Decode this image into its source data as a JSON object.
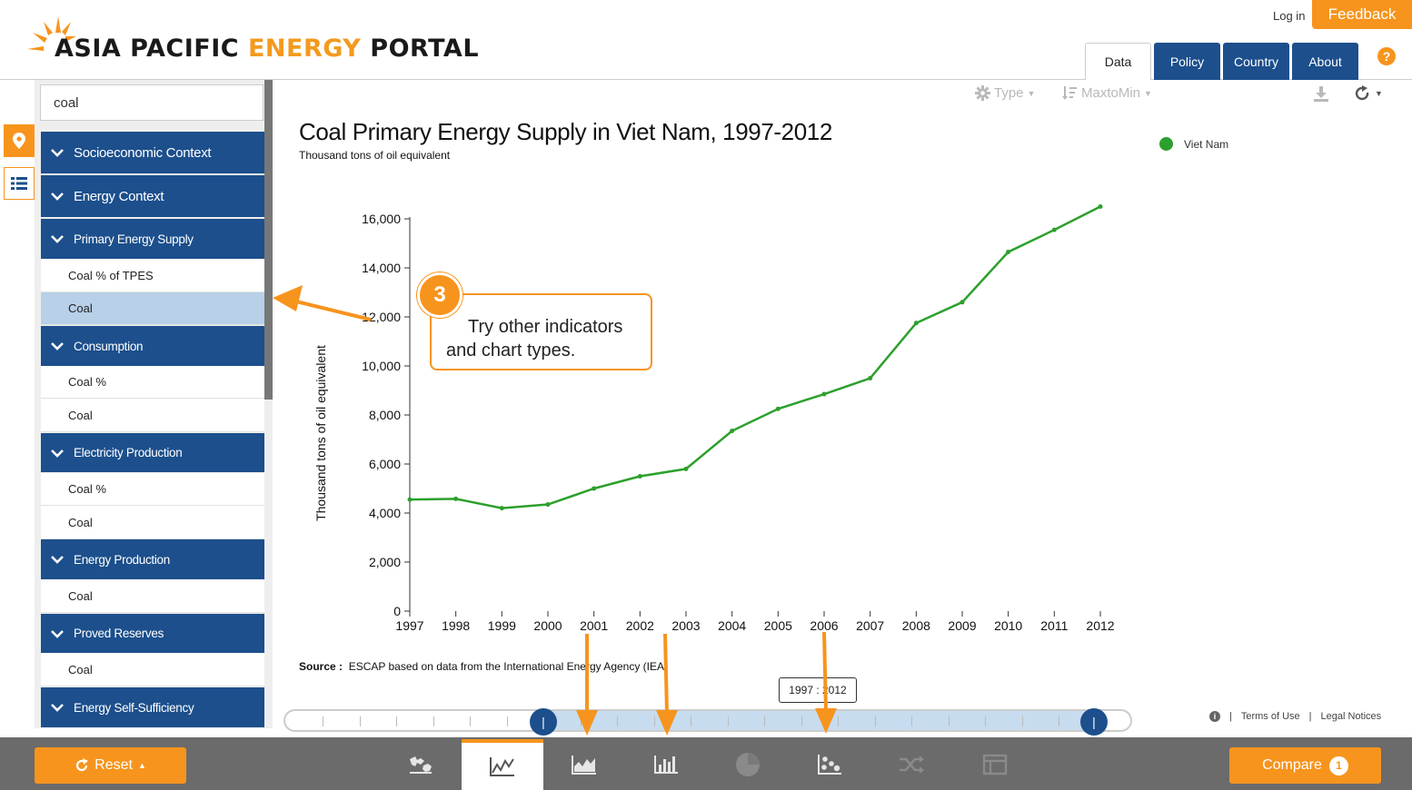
{
  "header": {
    "logo": {
      "word1": "ASIA PACIFIC",
      "word2": "ENERGY",
      "word3": "PORTAL"
    },
    "login_label": "Log in",
    "feedback_label": "Feedback",
    "tabs": [
      {
        "label": "Data",
        "active": true
      },
      {
        "label": "Policy",
        "active": false
      },
      {
        "label": "Country",
        "active": false
      },
      {
        "label": "About",
        "active": false
      }
    ],
    "help_label": "?"
  },
  "sidebar": {
    "search_value": "coal",
    "items": [
      {
        "kind": "category",
        "label": "Socioeconomic Context"
      },
      {
        "kind": "category",
        "label": "Energy Context"
      },
      {
        "kind": "category",
        "label": "Primary Energy Supply"
      },
      {
        "kind": "leaf",
        "label": "Coal % of TPES"
      },
      {
        "kind": "leaf",
        "label": "Coal",
        "selected": true
      },
      {
        "kind": "category",
        "label": "Consumption"
      },
      {
        "kind": "leaf",
        "label": "Coal %"
      },
      {
        "kind": "leaf",
        "label": "Coal"
      },
      {
        "kind": "category",
        "label": "Electricity Production"
      },
      {
        "kind": "leaf",
        "label": "Coal %"
      },
      {
        "kind": "leaf",
        "label": "Coal"
      },
      {
        "kind": "category",
        "label": "Energy Production"
      },
      {
        "kind": "leaf",
        "label": "Coal"
      },
      {
        "kind": "category",
        "label": "Proved Reserves"
      },
      {
        "kind": "leaf",
        "label": "Coal"
      },
      {
        "kind": "category",
        "label": "Energy Self-Sufficiency"
      }
    ]
  },
  "toolbar": {
    "type_label": "Type",
    "sort_label": "MaxtoMin"
  },
  "chart_data": {
    "type": "line",
    "title": "Coal Primary Energy Supply in Viet Nam, 1997-2012",
    "subtitle": "Thousand tons of oil equivalent",
    "ylabel": "Thousand tons of oil equivalent",
    "xlabel": "",
    "ylim": [
      0,
      16000
    ],
    "yticks": [
      0,
      2000,
      4000,
      6000,
      8000,
      10000,
      12000,
      14000,
      16000
    ],
    "ytick_labels": [
      "0",
      "2,000",
      "4,000",
      "6,000",
      "8,000",
      "10,000",
      "12,000",
      "14,000",
      "16,000"
    ],
    "x": [
      "1997",
      "1998",
      "1999",
      "2000",
      "2001",
      "2002",
      "2003",
      "2004",
      "2005",
      "2006",
      "2007",
      "2008",
      "2009",
      "2010",
      "2011",
      "2012"
    ],
    "series": [
      {
        "name": "Viet Nam",
        "color": "#2ca02c",
        "values": [
          4550,
          4580,
          4200,
          4350,
          5000,
          5500,
          5800,
          7350,
          8250,
          8850,
          9500,
          11750,
          12600,
          14650,
          15550,
          16500
        ]
      }
    ],
    "legend_position": "top-right",
    "source_label": "Source :",
    "source_text": "ESCAP based on data from the International Energy Agency (IEA)"
  },
  "callout": {
    "number": "3",
    "text": "Try other indicators and chart types."
  },
  "range": {
    "label": "1997 : 2012",
    "start_year": "1997",
    "end_year": "2012",
    "handle_glyph": "|"
  },
  "footer": {
    "terms_label": "Terms of Use",
    "legal_label": "Legal Notices",
    "separator": "|"
  },
  "bottombar": {
    "reset_label": "Reset",
    "compare_label": "Compare",
    "compare_count": "1",
    "chart_types": [
      {
        "name": "map",
        "active": false
      },
      {
        "name": "line",
        "active": true
      },
      {
        "name": "area",
        "active": false
      },
      {
        "name": "bar",
        "active": false
      },
      {
        "name": "pie",
        "active": false
      },
      {
        "name": "scatter",
        "active": false
      },
      {
        "name": "shuffle",
        "active": false
      },
      {
        "name": "table",
        "active": false
      }
    ]
  },
  "colors": {
    "brand_blue": "#1c4f8c",
    "accent_orange": "#f7941d",
    "line_green": "#2ca02c"
  }
}
